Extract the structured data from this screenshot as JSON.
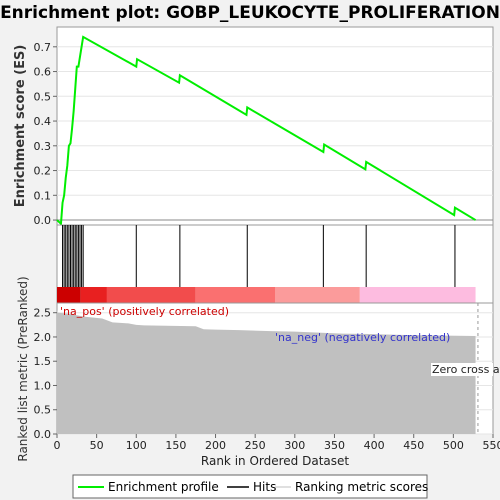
{
  "title": "Enrichment plot: GOBP_LEUKOCYTE_PROLIFERATION",
  "chart_data": [
    {
      "type": "line",
      "name": "es_panel",
      "ylabel": "Enrichment score (ES)",
      "ylim": [
        -0.02,
        0.78
      ],
      "yticks": [
        0.0,
        0.1,
        0.2,
        0.3,
        0.4,
        0.5,
        0.6,
        0.7
      ],
      "xlim": [
        0,
        550
      ],
      "line_color": "#00ee00",
      "points": [
        [
          0,
          0.0
        ],
        [
          5,
          -0.015
        ],
        [
          7,
          0.07
        ],
        [
          9,
          0.1
        ],
        [
          11,
          0.17
        ],
        [
          13,
          0.22
        ],
        [
          15,
          0.3
        ],
        [
          17,
          0.31
        ],
        [
          19,
          0.37
        ],
        [
          21,
          0.44
        ],
        [
          23,
          0.53
        ],
        [
          25,
          0.62
        ],
        [
          27,
          0.62
        ],
        [
          29,
          0.66
        ],
        [
          31,
          0.7
        ],
        [
          33,
          0.74
        ],
        [
          100,
          0.62
        ],
        [
          101,
          0.65
        ],
        [
          154,
          0.555
        ],
        [
          155,
          0.585
        ],
        [
          239,
          0.425
        ],
        [
          240,
          0.455
        ],
        [
          336,
          0.275
        ],
        [
          337,
          0.305
        ],
        [
          389,
          0.205
        ],
        [
          390,
          0.235
        ],
        [
          501,
          0.02
        ],
        [
          502,
          0.05
        ],
        [
          528,
          0.0
        ]
      ]
    },
    {
      "type": "bar",
      "name": "hits_panel",
      "xlim": [
        0,
        550
      ],
      "hit_positions": [
        7,
        9,
        11,
        13,
        15,
        17,
        19,
        21,
        23,
        25,
        27,
        29,
        31,
        33,
        100,
        155,
        240,
        336,
        390,
        502
      ],
      "heat_bands": [
        {
          "from": 0,
          "to": 30,
          "color": "#cc0000"
        },
        {
          "from": 30,
          "to": 63,
          "color": "#e82020"
        },
        {
          "from": 63,
          "to": 175,
          "color": "#f24c4c"
        },
        {
          "from": 175,
          "to": 275,
          "color": "#fa7070"
        },
        {
          "from": 275,
          "to": 382,
          "color": "#fb9b9b"
        },
        {
          "from": 382,
          "to": 528,
          "color": "#fdbce0"
        }
      ]
    },
    {
      "type": "area",
      "name": "metric_panel",
      "xlabel": "Rank in Ordered Dataset",
      "ylabel": "Ranked list metric (PreRanked)",
      "ylim": [
        0,
        2.7
      ],
      "yticks": [
        0.0,
        0.5,
        1.0,
        1.5,
        2.0,
        2.5
      ],
      "xticks": [
        0,
        50,
        100,
        150,
        200,
        250,
        300,
        350,
        400,
        450,
        500,
        550
      ],
      "xlim": [
        0,
        550
      ],
      "fill_color": "#c0c0c0",
      "points": [
        [
          0,
          2.55
        ],
        [
          1,
          2.5
        ],
        [
          14,
          2.48
        ],
        [
          34,
          2.42
        ],
        [
          57,
          2.38
        ],
        [
          70,
          2.3
        ],
        [
          90,
          2.28
        ],
        [
          100,
          2.25
        ],
        [
          110,
          2.24
        ],
        [
          175,
          2.22
        ],
        [
          185,
          2.16
        ],
        [
          200,
          2.15
        ],
        [
          230,
          2.14
        ],
        [
          270,
          2.12
        ],
        [
          300,
          2.11
        ],
        [
          330,
          2.09
        ],
        [
          360,
          2.07
        ],
        [
          395,
          2.06
        ],
        [
          440,
          2.04
        ],
        [
          480,
          2.03
        ],
        [
          528,
          2.02
        ]
      ],
      "annotations": {
        "pos_label": "'na_pos' (positively correlated)",
        "neg_label": "'na_neg' (negatively correlated)",
        "zero_cross": "Zero cross at"
      },
      "zero_cross_x": 531
    }
  ],
  "legend": {
    "items": [
      {
        "label": "Enrichment profile",
        "color": "#00ee00"
      },
      {
        "label": "Hits",
        "color": "#000000"
      },
      {
        "label": "Ranking metric scores",
        "color": "#c0c0c0"
      }
    ]
  }
}
